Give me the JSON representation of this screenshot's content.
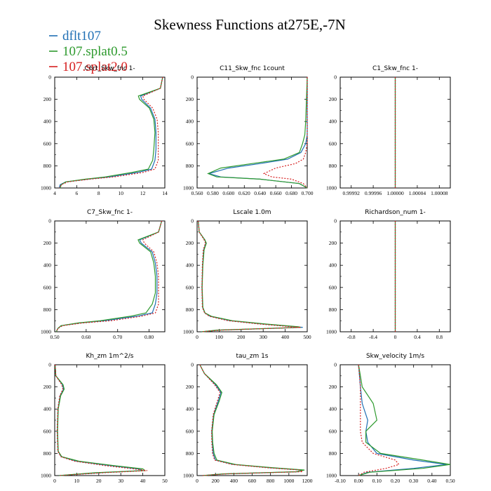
{
  "title": "Skewness Functions at275E,-7N",
  "legend": [
    {
      "label": "dflt107",
      "color": "#1f6fb4"
    },
    {
      "label": "107.splat0.5",
      "color": "#2e9a2e"
    },
    {
      "label": "107.splat2.0",
      "color": "#d62020"
    }
  ],
  "chart_data": [
    {
      "type": "line",
      "title": "C6rt_Skw_fnc 1-",
      "xlim": [
        4,
        14
      ],
      "ylim": [
        1000,
        0
      ],
      "xticks": [
        4,
        6,
        8,
        10,
        12,
        14
      ],
      "xtick_labels": [
        "4",
        "6",
        "8",
        "10",
        "12",
        "14"
      ],
      "yticks": [
        0,
        200,
        400,
        600,
        800,
        1000
      ],
      "series": [
        {
          "name": "dflt107",
          "x": [
            13.8,
            13.7,
            13.6,
            11.8,
            11.9,
            12.7,
            13.1,
            13.2,
            13.2,
            13.1,
            12.8,
            11.5,
            9.0,
            7.0,
            5.0,
            4.5,
            4.4
          ],
          "y": [
            0,
            50,
            100,
            170,
            200,
            280,
            380,
            500,
            650,
            750,
            830,
            860,
            900,
            920,
            945,
            970,
            1000
          ]
        },
        {
          "name": "107.splat0.5",
          "x": [
            13.8,
            13.7,
            13.6,
            11.6,
            11.7,
            12.6,
            13.0,
            13.1,
            13.0,
            12.9,
            12.5,
            11.0,
            8.6,
            6.8,
            5.0,
            4.6,
            4.5
          ],
          "y": [
            0,
            50,
            100,
            170,
            200,
            280,
            380,
            500,
            650,
            750,
            830,
            860,
            900,
            920,
            945,
            970,
            1000
          ]
        },
        {
          "name": "107.splat2.0",
          "x": [
            13.8,
            13.7,
            13.6,
            12.0,
            12.1,
            12.9,
            13.3,
            13.4,
            13.4,
            13.4,
            13.1,
            12.0,
            9.4,
            7.2,
            5.2,
            4.6,
            4.4
          ],
          "y": [
            0,
            50,
            100,
            170,
            200,
            280,
            380,
            500,
            650,
            750,
            830,
            860,
            900,
            920,
            945,
            970,
            1000
          ]
        }
      ]
    },
    {
      "type": "line",
      "title": "C11_Skw_fnc 1count",
      "xlim": [
        0.56,
        0.7
      ],
      "ylim": [
        1000,
        0
      ],
      "xticks": [
        0.56,
        0.58,
        0.6,
        0.62,
        0.64,
        0.66,
        0.68,
        0.7
      ],
      "xtick_labels": [
        "0.560",
        "0.580",
        "0.600",
        "0.620",
        "0.640",
        "0.660",
        "0.680",
        "0.700"
      ],
      "yticks": [
        0,
        200,
        400,
        600,
        800,
        1000
      ],
      "series": [
        {
          "name": "dflt107",
          "x": [
            0.7,
            0.7,
            0.7,
            0.7,
            0.698,
            0.692,
            0.675,
            0.64,
            0.6,
            0.575,
            0.59,
            0.64,
            0.69,
            0.7
          ],
          "y": [
            0,
            200,
            400,
            520,
            600,
            680,
            740,
            780,
            820,
            870,
            900,
            920,
            960,
            1000
          ]
        },
        {
          "name": "107.splat0.5",
          "x": [
            0.7,
            0.699,
            0.698,
            0.697,
            0.694,
            0.69,
            0.67,
            0.63,
            0.59,
            0.574,
            0.585,
            0.64,
            0.69,
            0.7
          ],
          "y": [
            0,
            200,
            400,
            520,
            600,
            680,
            740,
            780,
            820,
            870,
            900,
            920,
            960,
            1000
          ]
        },
        {
          "name": "107.splat2.0",
          "x": [
            0.7,
            0.7,
            0.7,
            0.7,
            0.7,
            0.698,
            0.695,
            0.685,
            0.66,
            0.645,
            0.655,
            0.68,
            0.695,
            0.7
          ],
          "y": [
            0,
            200,
            400,
            520,
            600,
            680,
            740,
            780,
            820,
            870,
            900,
            920,
            960,
            1000
          ]
        }
      ]
    },
    {
      "type": "line",
      "title": "C1_Skw_fnc 1-",
      "xlim": [
        0.9999,
        1.0001
      ],
      "ylim": [
        1000,
        0
      ],
      "xticks": [
        0.99992,
        0.99996,
        1.0,
        1.00004,
        1.00008
      ],
      "xtick_labels": [
        "0.99992",
        "0.99996",
        "1.00000",
        "1.00004",
        "1.00008"
      ],
      "yticks": [
        0,
        200,
        400,
        600,
        800,
        1000
      ],
      "series": [
        {
          "name": "dflt107",
          "x": [
            1.0,
            1.0
          ],
          "y": [
            0,
            1000
          ]
        },
        {
          "name": "107.splat0.5",
          "x": [
            1.0,
            1.0
          ],
          "y": [
            0,
            1000
          ]
        },
        {
          "name": "107.splat2.0",
          "x": [
            1.0,
            1.0
          ],
          "y": [
            0,
            1000
          ]
        }
      ]
    },
    {
      "type": "line",
      "title": "C7_Skw_fnc 1-",
      "xlim": [
        0.5,
        0.85
      ],
      "ylim": [
        1000,
        0
      ],
      "xticks": [
        0.5,
        0.6,
        0.7,
        0.8
      ],
      "xtick_labels": [
        "0.50",
        "0.60",
        "0.70",
        "0.80"
      ],
      "yticks": [
        0,
        200,
        400,
        600,
        800,
        1000
      ],
      "series": [
        {
          "name": "dflt107",
          "x": [
            0.84,
            0.835,
            0.83,
            0.77,
            0.775,
            0.81,
            0.82,
            0.825,
            0.825,
            0.82,
            0.81,
            0.76,
            0.66,
            0.58,
            0.52,
            0.51,
            0.505
          ],
          "y": [
            0,
            50,
            100,
            170,
            200,
            280,
            380,
            500,
            650,
            750,
            830,
            860,
            900,
            920,
            945,
            970,
            1000
          ]
        },
        {
          "name": "107.splat0.5",
          "x": [
            0.84,
            0.835,
            0.83,
            0.765,
            0.77,
            0.805,
            0.815,
            0.82,
            0.82,
            0.81,
            0.79,
            0.74,
            0.645,
            0.575,
            0.52,
            0.51,
            0.505
          ],
          "y": [
            0,
            50,
            100,
            170,
            200,
            280,
            380,
            500,
            650,
            750,
            830,
            860,
            900,
            920,
            945,
            970,
            1000
          ]
        },
        {
          "name": "107.splat2.0",
          "x": [
            0.84,
            0.835,
            0.83,
            0.78,
            0.785,
            0.815,
            0.825,
            0.83,
            0.83,
            0.83,
            0.82,
            0.775,
            0.68,
            0.59,
            0.525,
            0.51,
            0.505
          ],
          "y": [
            0,
            50,
            100,
            170,
            200,
            280,
            380,
            500,
            650,
            750,
            830,
            860,
            900,
            920,
            945,
            970,
            1000
          ]
        }
      ]
    },
    {
      "type": "line",
      "title": "Lscale 1.0m",
      "xlim": [
        0,
        500
      ],
      "ylim": [
        1000,
        0
      ],
      "xticks": [
        0,
        100,
        200,
        300,
        400,
        500
      ],
      "xtick_labels": [
        "0",
        "100",
        "200",
        "300",
        "400",
        "500"
      ],
      "yticks": [
        0,
        200,
        400,
        600,
        800,
        1000
      ],
      "series": [
        {
          "name": "dflt107",
          "x": [
            5,
            10,
            35,
            40,
            30,
            25,
            22,
            25,
            35,
            60,
            150,
            300,
            450,
            480,
            100,
            20
          ],
          "y": [
            0,
            100,
            170,
            200,
            260,
            400,
            600,
            780,
            830,
            860,
            900,
            930,
            955,
            960,
            985,
            1000
          ]
        },
        {
          "name": "107.splat0.5",
          "x": [
            5,
            10,
            35,
            42,
            32,
            26,
            23,
            26,
            36,
            65,
            160,
            310,
            460,
            470,
            90,
            20
          ],
          "y": [
            0,
            100,
            170,
            200,
            260,
            400,
            600,
            780,
            830,
            860,
            900,
            930,
            955,
            960,
            985,
            1000
          ]
        },
        {
          "name": "107.splat2.0",
          "x": [
            5,
            10,
            32,
            38,
            28,
            24,
            22,
            24,
            34,
            55,
            140,
            280,
            430,
            470,
            110,
            20
          ],
          "y": [
            0,
            100,
            170,
            200,
            260,
            400,
            600,
            780,
            830,
            860,
            900,
            930,
            955,
            960,
            985,
            1000
          ]
        }
      ]
    },
    {
      "type": "line",
      "title": "Richardson_num 1-",
      "xlim": [
        -1.0,
        1.0
      ],
      "ylim": [
        1000,
        0
      ],
      "xticks": [
        -0.8,
        -0.4,
        0,
        0.4,
        0.8
      ],
      "xtick_labels": [
        "-0.8",
        "-0.4",
        "0",
        "0.4",
        "0.8"
      ],
      "yticks": [
        0,
        200,
        400,
        600,
        800,
        1000
      ],
      "series": [
        {
          "name": "dflt107",
          "x": [
            0,
            0
          ],
          "y": [
            0,
            1000
          ]
        },
        {
          "name": "107.splat0.5",
          "x": [
            0,
            0
          ],
          "y": [
            0,
            1000
          ]
        },
        {
          "name": "107.splat2.0",
          "x": [
            0,
            0
          ],
          "y": [
            0,
            1000
          ]
        }
      ]
    },
    {
      "type": "line",
      "title": "Kh_zm 1m^2/s",
      "xlim": [
        0,
        50
      ],
      "ylim": [
        1000,
        0
      ],
      "xticks": [
        0,
        10,
        20,
        30,
        40,
        50
      ],
      "xtick_labels": [
        "0",
        "10",
        "20",
        "30",
        "40",
        "50"
      ],
      "yticks": [
        0,
        200,
        400,
        600,
        800,
        1000
      ],
      "series": [
        {
          "name": "dflt107",
          "x": [
            0.2,
            0.5,
            3.5,
            4.0,
            2.5,
            1.5,
            1.2,
            1.5,
            3,
            10,
            25,
            38,
            40,
            20,
            2
          ],
          "y": [
            0,
            100,
            180,
            220,
            280,
            400,
            600,
            780,
            830,
            870,
            910,
            940,
            955,
            975,
            1000
          ]
        },
        {
          "name": "107.splat0.5",
          "x": [
            0.2,
            0.5,
            3.8,
            4.3,
            2.7,
            1.6,
            1.3,
            1.6,
            3.2,
            11,
            27,
            40,
            41,
            18,
            2
          ],
          "y": [
            0,
            100,
            180,
            220,
            280,
            400,
            600,
            780,
            830,
            870,
            910,
            940,
            955,
            975,
            1000
          ]
        },
        {
          "name": "107.splat2.0",
          "x": [
            0.2,
            0.5,
            3.2,
            3.7,
            2.3,
            1.4,
            1.1,
            1.4,
            2.8,
            9,
            23,
            36,
            42,
            22,
            2
          ],
          "y": [
            0,
            100,
            180,
            220,
            280,
            400,
            600,
            780,
            830,
            870,
            910,
            940,
            955,
            975,
            1000
          ]
        }
      ]
    },
    {
      "type": "line",
      "title": "tau_zm 1s",
      "xlim": [
        0,
        1200
      ],
      "ylim": [
        1000,
        0
      ],
      "xticks": [
        0,
        200,
        400,
        600,
        800,
        1000,
        1200
      ],
      "xtick_labels": [
        "0",
        "200",
        "400",
        "600",
        "800",
        "1000",
        "1200"
      ],
      "yticks": [
        0,
        200,
        400,
        600,
        800,
        1000
      ],
      "series": [
        {
          "name": "dflt107",
          "x": [
            30,
            80,
            200,
            260,
            230,
            180,
            160,
            165,
            175,
            200,
            400,
            800,
            1150,
            1100,
            300,
            60
          ],
          "y": [
            0,
            80,
            180,
            250,
            330,
            450,
            600,
            700,
            800,
            860,
            900,
            930,
            950,
            965,
            985,
            1000
          ]
        },
        {
          "name": "107.splat0.5",
          "x": [
            30,
            80,
            210,
            270,
            240,
            185,
            165,
            170,
            185,
            215,
            420,
            830,
            1170,
            1080,
            280,
            60
          ],
          "y": [
            0,
            80,
            180,
            250,
            330,
            450,
            600,
            700,
            800,
            860,
            900,
            930,
            950,
            965,
            985,
            1000
          ]
        },
        {
          "name": "107.splat2.0",
          "x": [
            30,
            80,
            190,
            250,
            220,
            175,
            158,
            160,
            168,
            190,
            380,
            770,
            1120,
            1150,
            320,
            60
          ],
          "y": [
            0,
            80,
            180,
            250,
            330,
            450,
            600,
            700,
            800,
            860,
            900,
            930,
            950,
            965,
            985,
            1000
          ]
        }
      ]
    },
    {
      "type": "line",
      "title": "Skw_velocity 1m/s",
      "xlim": [
        -0.1,
        0.5
      ],
      "ylim": [
        1000,
        0
      ],
      "xticks": [
        -0.1,
        0.0,
        0.1,
        0.2,
        0.3,
        0.4,
        0.5
      ],
      "xtick_labels": [
        "-0.10",
        "0.00",
        "0.10",
        "0.20",
        "0.30",
        "0.40",
        "0.50"
      ],
      "yticks": [
        0,
        200,
        400,
        600,
        800,
        1000
      ],
      "series": [
        {
          "name": "dflt107",
          "x": [
            0.0,
            0.01,
            0.02,
            0.05,
            0.04,
            0.05,
            0.1,
            0.3,
            0.48,
            0.3,
            0.05,
            0.0
          ],
          "y": [
            0,
            200,
            350,
            500,
            600,
            700,
            800,
            860,
            900,
            935,
            970,
            1000
          ]
        },
        {
          "name": "107.splat0.5",
          "x": [
            0.0,
            0.02,
            0.08,
            0.1,
            0.04,
            0.04,
            0.12,
            0.35,
            0.5,
            0.35,
            0.06,
            0.0
          ],
          "y": [
            0,
            200,
            350,
            500,
            600,
            700,
            800,
            860,
            900,
            935,
            970,
            1000
          ]
        },
        {
          "name": "107.splat2.0",
          "x": [
            0.0,
            0.01,
            0.01,
            0.01,
            0.01,
            0.02,
            0.08,
            0.2,
            0.22,
            0.15,
            0.03,
            0.0
          ],
          "y": [
            0,
            200,
            350,
            500,
            600,
            700,
            800,
            860,
            900,
            935,
            970,
            1000
          ]
        }
      ]
    }
  ]
}
